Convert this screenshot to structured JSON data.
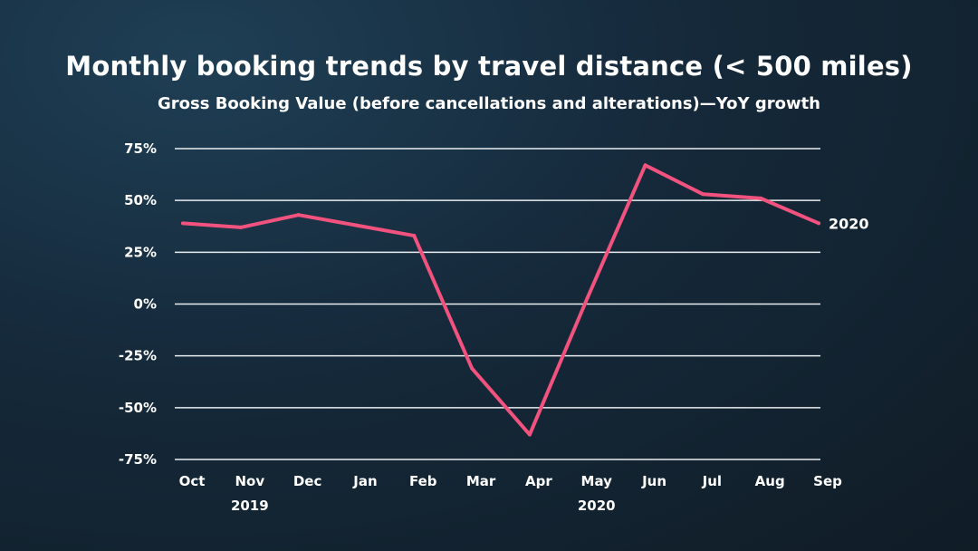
{
  "chart_data": {
    "type": "line",
    "title": "Monthly booking trends by travel distance (< 500 miles)",
    "subtitle": "Gross Booking Value (before cancellations and alterations)—YoY growth",
    "categories": [
      "Oct",
      "Nov",
      "Dec",
      "Jan",
      "Feb",
      "Mar",
      "Apr",
      "May",
      "Jun",
      "Jul",
      "Aug",
      "Sep"
    ],
    "year_labels": [
      {
        "label": "2019",
        "category": "Nov"
      },
      {
        "label": "2020",
        "category": "May"
      }
    ],
    "y_ticks": [
      "75%",
      "50%",
      "25%",
      "0%",
      "-25%",
      "-50%",
      "-75%"
    ],
    "y_tick_values": [
      75,
      50,
      25,
      0,
      -25,
      -50,
      -75
    ],
    "ylim": [
      -75,
      75
    ],
    "grid": true,
    "series": [
      {
        "name": "2020",
        "color": "#f2527e",
        "values": [
          39,
          37,
          43,
          38,
          33,
          -31,
          -63,
          3,
          67,
          53,
          51,
          39
        ]
      }
    ]
  }
}
